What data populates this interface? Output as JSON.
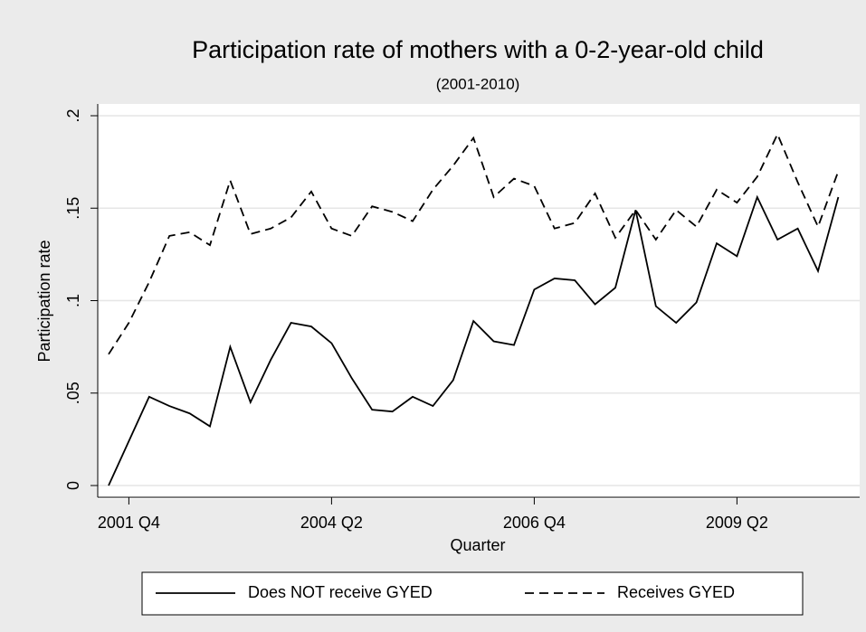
{
  "chart_data": {
    "type": "line",
    "title": "Participation rate of mothers with a 0-2-year-old child",
    "subtitle": "(2001-2010)",
    "x_label": "Quarter",
    "y_label": "Participation rate",
    "categories": [
      null,
      "2001 Q4",
      null,
      null,
      null,
      null,
      null,
      null,
      null,
      null,
      null,
      "2004 Q2",
      null,
      null,
      null,
      null,
      null,
      null,
      null,
      null,
      null,
      "2006 Q4",
      null,
      null,
      null,
      null,
      null,
      null,
      null,
      null,
      null,
      "2009 Q2",
      null,
      null,
      null,
      null,
      null
    ],
    "series": [
      {
        "name": "Does NOT receive GYED",
        "color": "#000000",
        "dash": "solid",
        "values": [
          0,
          0.024,
          0.048,
          0.043,
          0.039,
          0.032,
          0.075,
          0.045,
          0.068,
          0.088,
          0.086,
          0.077,
          0.058,
          0.041,
          0.04,
          0.048,
          0.043,
          0.057,
          0.089,
          0.078,
          0.076,
          0.106,
          0.112,
          0.111,
          0.098,
          0.107,
          0.149,
          0.097,
          0.088,
          0.099,
          0.131,
          0.124,
          0.156,
          0.133,
          0.139,
          0.116,
          0.156
        ]
      },
      {
        "name": "Receives GYED",
        "color": "#000000",
        "dash": "dashed",
        "values": [
          0.071,
          0.088,
          0.11,
          0.135,
          0.137,
          0.13,
          0.165,
          0.136,
          0.139,
          0.145,
          0.159,
          0.139,
          0.135,
          0.151,
          0.148,
          0.143,
          0.16,
          0.173,
          0.188,
          0.156,
          0.166,
          0.162,
          0.139,
          0.142,
          0.158,
          0.134,
          0.149,
          0.133,
          0.149,
          0.14,
          0.16,
          0.153,
          0.167,
          0.19,
          0.164,
          0.14,
          0.17
        ]
      }
    ],
    "ylim": [
      0,
      0.2
    ],
    "yticks": [
      0,
      {
        "value": 0.05,
        "label": ".05"
      },
      {
        "value": 0.1,
        "label": ".1"
      },
      {
        "value": 0.15,
        "label": ".15"
      },
      {
        "value": 0.2,
        "label": ".2"
      }
    ],
    "grid": true,
    "legend": "bottom"
  }
}
